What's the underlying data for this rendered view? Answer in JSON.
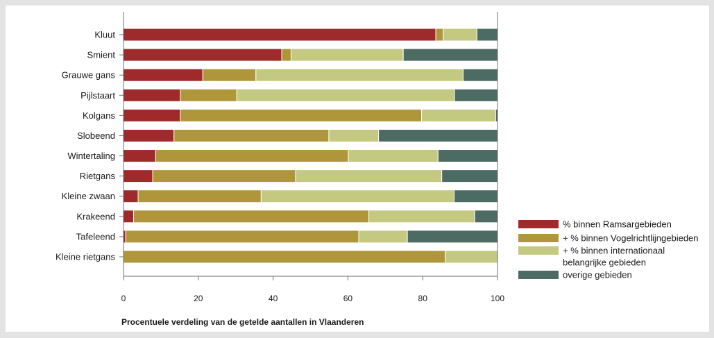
{
  "chart_data": {
    "type": "bar",
    "orientation": "horizontal",
    "stacked": true,
    "title": "",
    "xlabel": "Procentuele verdeling van de getelde aantallen in Vlaanderen",
    "ylabel": "",
    "xlim": [
      0,
      100
    ],
    "x_ticks": [
      "0",
      "20",
      "40",
      "60",
      "80",
      "100"
    ],
    "grid": false,
    "legend_position": "right",
    "categories": [
      "Kluut",
      "Smient",
      "Grauwe gans",
      "Pijlstaart",
      "Kolgans",
      "Slobeend",
      "Wintertaling",
      "Rietgans",
      "Kleine zwaan",
      "Krakeend",
      "Tafeleend",
      "Kleine rietgans"
    ],
    "series": [
      {
        "name": "% binnen Ramsargebieden",
        "color": "#9e2a2b",
        "values": [
          83.5,
          42.3,
          21.2,
          15.2,
          15.2,
          13.5,
          8.6,
          7.8,
          3.9,
          2.7,
          0.6,
          0
        ]
      },
      {
        "name": "+ % binnen Vogelrichtlijngebieden",
        "color": "#b0963a",
        "values": [
          2.0,
          2.5,
          14.2,
          15.1,
          64.5,
          41.4,
          51.5,
          38.2,
          32.9,
          62.9,
          62.3,
          86.0
        ]
      },
      {
        "name": "+ % binnen internationaal belangrijke gebieden",
        "color": "#c3c980",
        "values": [
          9.0,
          30.0,
          55.4,
          58.2,
          19.8,
          13.3,
          24.0,
          39.1,
          51.6,
          28.3,
          13.0,
          14.0
        ]
      },
      {
        "name": "overige gebieden",
        "color": "#4c6b63",
        "values": [
          5.5,
          25.2,
          9.2,
          11.5,
          0.5,
          31.8,
          15.9,
          14.9,
          11.6,
          6.1,
          24.1,
          0
        ]
      }
    ]
  },
  "legend": {
    "items": [
      {
        "lines": [
          "% binnen Ramsargebieden"
        ],
        "color": "#9e2a2b"
      },
      {
        "lines": [
          "+ % binnen Vogelrichtlijngebieden"
        ],
        "color": "#b0963a"
      },
      {
        "lines": [
          "+ % binnen internationaal",
          "belangrijke gebieden"
        ],
        "color": "#c3c980"
      },
      {
        "lines": [
          "overige gebieden"
        ],
        "color": "#4c6b63"
      }
    ]
  },
  "colors": {
    "background": "#e3e3e3",
    "plot_area": "#ffffff",
    "axis": "#6f6f6f"
  }
}
